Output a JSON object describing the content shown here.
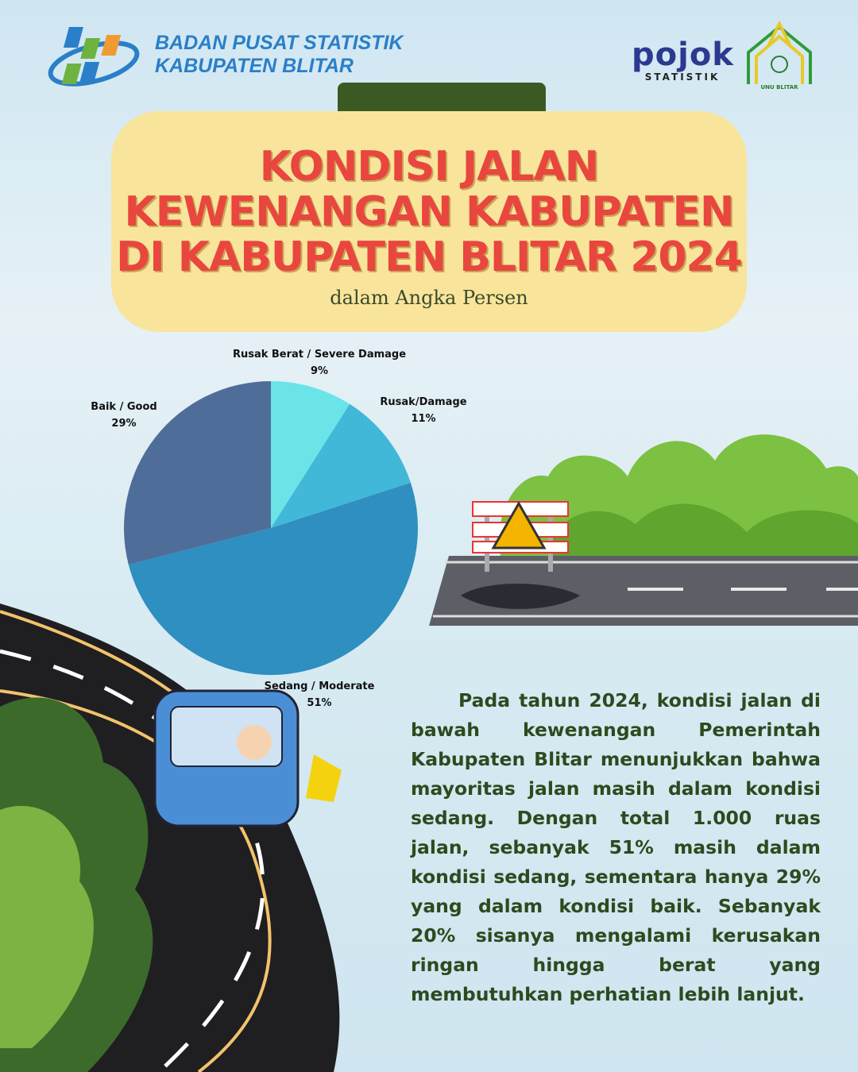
{
  "header": {
    "org_line1": "BADAN PUSAT STATISTIK",
    "org_line2": "KABUPATEN BLITAR",
    "pojok_word": "pojok",
    "pojok_sub": "STATISTIK",
    "unu_logo_text": "UNU BLITAR"
  },
  "title": {
    "line1": "KONDISI JALAN",
    "line2": "KEWENANGAN KABUPATEN",
    "line3": "DI KABUPATEN BLITAR 2024",
    "subtitle": "dalam Angka Persen"
  },
  "colors": {
    "title": "#e8463e",
    "title_box": "#f8e59b",
    "tab": "#3b5a23",
    "text": "#2d4a1f"
  },
  "chart_data": {
    "type": "pie",
    "start": "top, clockwise",
    "slices": [
      {
        "name": "Rusak Berat / Severe Damage",
        "label": "9%",
        "value": 9,
        "color": "#6be4e8"
      },
      {
        "name": "Rusak/Damage",
        "label": "11%",
        "value": 11,
        "color": "#42b8d8"
      },
      {
        "name": "Sedang / Moderate",
        "label": "51%",
        "value": 51,
        "color": "#2e8fc0"
      },
      {
        "name": "Baik / Good",
        "label": "29%",
        "value": 29,
        "color": "#4f6d99"
      }
    ]
  },
  "paragraph": "Pada tahun 2024, kondisi jalan di bawah kewenangan Pemerintah Kabupaten Blitar menunjukkan bahwa mayoritas jalan masih dalam kondisi sedang. Dengan total 1.000 ruas jalan, sebanyak 51% masih dalam kondisi sedang, sementara hanya 29% yang dalam kondisi baik. Sebanyak 20% sisanya mengalami kerusakan ringan hingga berat yang membutuhkan perhatian lebih lanjut."
}
